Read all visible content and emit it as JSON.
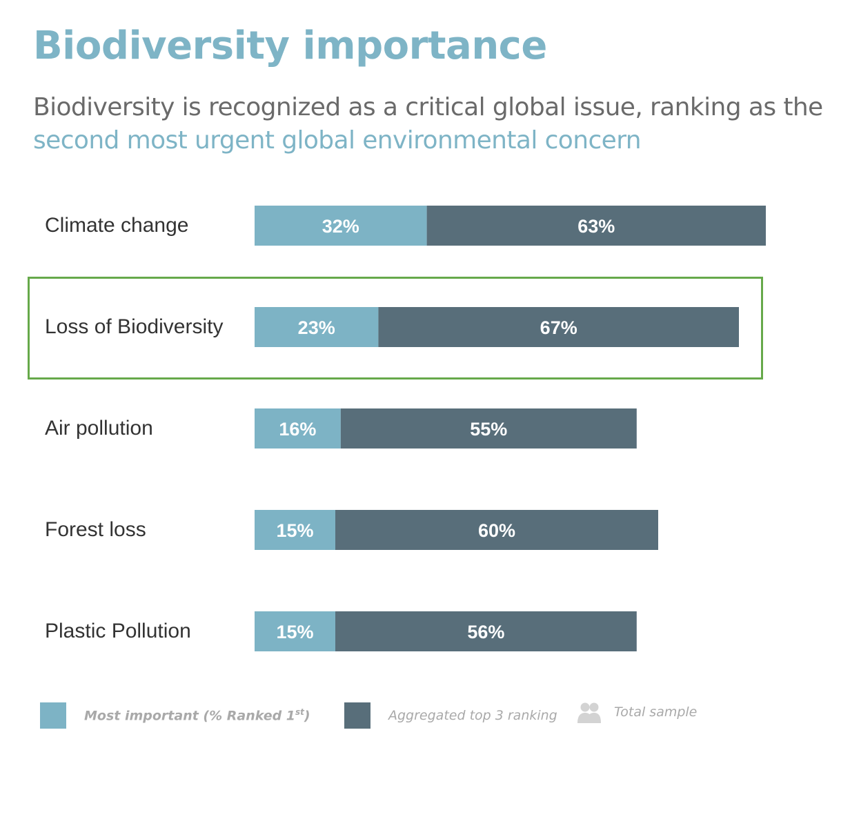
{
  "header": {
    "title": "Biodiversity importance",
    "subtitle_plain": "Biodiversity is recognized as a critical global issue, ranking as the ",
    "subtitle_highlight": "second most urgent global environmental concern"
  },
  "colors": {
    "title": "#7eb4c6",
    "most_important": "#7db3c5",
    "top3": "#586e7a",
    "highlight_box": "#66a94a"
  },
  "chart_data": {
    "type": "bar",
    "orientation": "horizontal",
    "stacked": true,
    "categories": [
      "Climate change",
      "Loss of Biodiversity",
      "Air pollution",
      "Forest loss",
      "Plastic Pollution"
    ],
    "series": [
      {
        "name": "Most important (% Ranked 1st)",
        "values": [
          32,
          23,
          16,
          15,
          15
        ],
        "labels": [
          "32%",
          "23%",
          "16%",
          "15%",
          "15%"
        ]
      },
      {
        "name": "Aggregated top 3 ranking",
        "values": [
          63,
          67,
          55,
          60,
          56
        ],
        "labels": [
          "63%",
          "67%",
          "55%",
          "60%",
          "56%"
        ]
      }
    ],
    "highlighted_category": "Loss of Biodiversity",
    "xlim": [
      0,
      100
    ]
  },
  "legend": {
    "most_important_prefix": "Most important (% Ranked 1",
    "most_important_sup": "st",
    "most_important_suffix": ")",
    "top3": "Aggregated top 3 ranking",
    "total_sample": "Total sample",
    "total_sample_icon": "people-icon"
  }
}
